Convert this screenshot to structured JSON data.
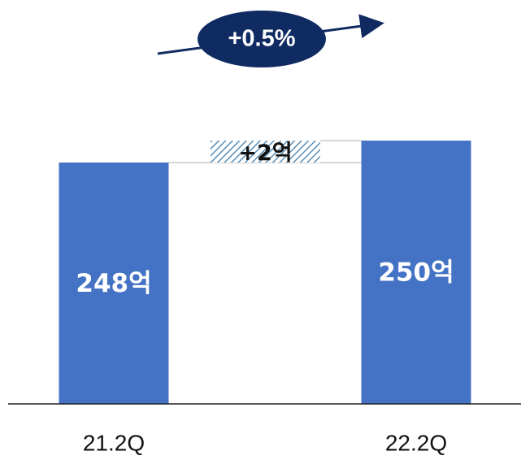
{
  "chart_data": {
    "type": "bar",
    "categories": [
      "21.2Q",
      "22.2Q"
    ],
    "values": [
      248,
      250
    ],
    "value_labels": [
      "248억",
      "250억"
    ],
    "delta": {
      "value": 2,
      "label": "+2억"
    },
    "growth": {
      "label": "+0.5%"
    },
    "ylim": [
      0,
      250
    ],
    "grid": false,
    "legend": "none",
    "title": "",
    "xlabel": "",
    "ylabel": ""
  },
  "colors": {
    "bar": "#4472C4",
    "growth_badge": "#0F2B62",
    "connector": "#C8C8C8",
    "delta_hatch": "#5A8FB8",
    "baseline": "#222222"
  }
}
